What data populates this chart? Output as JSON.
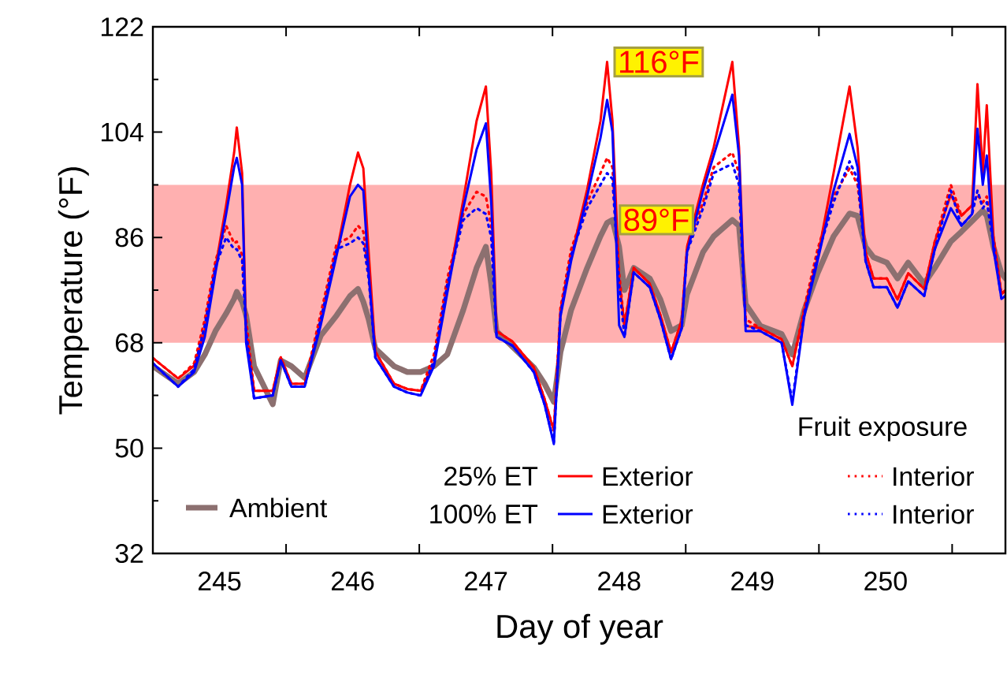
{
  "chart_data": {
    "type": "line",
    "xlabel": "Day of year",
    "ylabel": "Temperature (°F)",
    "legend_title": "Fruit exposure",
    "legend": "bottom",
    "xlim": [
      244.5,
      250.9
    ],
    "ylim": [
      32,
      122
    ],
    "xticks": [
      {
        "value": 244.5,
        "label": null
      },
      245,
      {
        "value": 245.5,
        "label": null
      },
      246,
      {
        "value": 246.5,
        "label": null
      },
      247,
      {
        "value": 247.5,
        "label": null
      },
      248,
      {
        "value": 248.5,
        "label": null
      },
      249,
      {
        "value": 249.5,
        "label": null
      },
      250,
      {
        "value": 250.5,
        "label": null
      }
    ],
    "yticks": [
      32,
      {
        "value": 41,
        "label": null
      },
      50,
      {
        "value": 59,
        "label": null
      },
      68,
      {
        "value": 77,
        "label": null
      },
      86,
      {
        "value": 95,
        "label": null
      },
      104,
      {
        "value": 113,
        "label": null
      },
      122
    ],
    "bands": [
      {
        "axis": "y",
        "from": 68,
        "to": 95,
        "color": "#ffb0b0"
      }
    ],
    "annotations": [
      {
        "text": "116°F",
        "x": 247.91,
        "y": 116
      },
      {
        "text": "89°F",
        "x": 247.95,
        "y": 89
      },
      "25% ET",
      "100% ET"
    ],
    "x": [
      244.5,
      244.69,
      244.81,
      244.89,
      244.97,
      245.05,
      245.11,
      245.13,
      245.17,
      245.2,
      245.26,
      245.4,
      245.46,
      245.54,
      245.64,
      245.76,
      245.88,
      245.98,
      246.04,
      246.08,
      246.12,
      246.17,
      246.31,
      246.41,
      246.51,
      246.61,
      246.71,
      246.83,
      246.93,
      247.0,
      247.04,
      247.08,
      247.2,
      247.36,
      247.44,
      247.51,
      247.56,
      247.64,
      247.76,
      247.86,
      247.91,
      247.95,
      248.0,
      248.04,
      248.11,
      248.23,
      248.31,
      248.39,
      248.47,
      248.51,
      248.63,
      248.71,
      248.85,
      248.9,
      248.95,
      249.06,
      249.22,
      249.3,
      249.39,
      249.49,
      249.61,
      249.73,
      249.79,
      249.85,
      249.91,
      250.01,
      250.09,
      250.17,
      250.29,
      250.37,
      250.49,
      250.57,
      250.65,
      250.69,
      250.73,
      250.76,
      250.81,
      250.87,
      250.9
    ],
    "series": [
      {
        "name": "Ambient",
        "color": "#8c7070",
        "line_style": "solid",
        "values": [
          64,
          61,
          63,
          66,
          70,
          73,
          75.5,
          76.7,
          75,
          72.7,
          64,
          57.5,
          65,
          64,
          62,
          69.2,
          72.7,
          76,
          77.2,
          75,
          72,
          67,
          64,
          63,
          63,
          64,
          66,
          73.6,
          80.8,
          84.4,
          78,
          70,
          67.3,
          63.8,
          61,
          57.9,
          66.4,
          73.6,
          80.8,
          86.2,
          88.5,
          89,
          84.4,
          77,
          80.8,
          79,
          75.4,
          70,
          71,
          76.3,
          83.5,
          86.2,
          89,
          88,
          74.6,
          70.9,
          69.5,
          66,
          73.6,
          79.9,
          86.2,
          90.1,
          89.7,
          84.4,
          82.6,
          81.7,
          79,
          81.7,
          78.1,
          80.8,
          85.3,
          87,
          88.8,
          89.7,
          90.6,
          89.7,
          84.4,
          79.9,
          79
        ]
      },
      {
        "name": "Exterior",
        "color": "#ff0000",
        "line_style": "solid",
        "values": [
          65.4,
          61.9,
          64.1,
          70,
          80.8,
          91.5,
          100.5,
          104.8,
          97,
          70,
          59.8,
          59.8,
          65.5,
          61,
          61,
          71.8,
          83.5,
          95,
          100.5,
          97.8,
          83.5,
          66.5,
          61,
          60.1,
          59.8,
          64.6,
          77.2,
          92.4,
          105.9,
          111.8,
          97,
          70,
          68.2,
          63.8,
          58.4,
          53,
          73.6,
          82.6,
          94.2,
          105.9,
          116,
          105.9,
          79,
          70.9,
          80.8,
          78.1,
          72.7,
          66.4,
          71.8,
          84.4,
          95.1,
          101.4,
          116,
          101.4,
          70.9,
          70.5,
          68.6,
          64,
          73.6,
          82.6,
          97,
          111.8,
          101.4,
          83.5,
          79,
          79,
          75.4,
          79.9,
          77.2,
          85.3,
          93.3,
          89.7,
          91.5,
          112.2,
          97,
          108.6,
          86.2,
          76.3,
          77
        ]
      },
      {
        "name": "Interior",
        "color": "#ff0000",
        "line_style": "dotted",
        "values": [
          65.4,
          61.9,
          64.5,
          72,
          82,
          88,
          85,
          85.3,
          83,
          72,
          59.8,
          59.8,
          65.5,
          61,
          61,
          73,
          85,
          86,
          88,
          87,
          80,
          66.5,
          61,
          60.1,
          59.8,
          66,
          79,
          90,
          93.8,
          93,
          88,
          70,
          68.2,
          63.8,
          58.4,
          53,
          74,
          84,
          92,
          97,
          99.6,
          98,
          80,
          71,
          80.8,
          78.1,
          72.7,
          66.4,
          71.8,
          84.4,
          92,
          98,
          100.5,
          97,
          72,
          70.5,
          68.6,
          64,
          74,
          84,
          93,
          97.8,
          95,
          83.5,
          79,
          79,
          75.4,
          79.9,
          77.2,
          85.3,
          95,
          89.7,
          91.5,
          93.3,
          92,
          93,
          86,
          76.3,
          77
        ]
      },
      {
        "name": "Exterior",
        "color": "#0000ff",
        "line_style": "solid",
        "values": [
          64.5,
          60.5,
          63,
          69,
          80,
          90,
          98,
          99.6,
          95,
          68,
          58.5,
          59,
          65,
          60.5,
          60.5,
          71,
          83,
          93,
          95,
          94,
          80,
          65.5,
          60.5,
          59.5,
          59,
          64,
          76.5,
          91,
          101,
          105.5,
          92,
          69,
          67.5,
          63,
          57.5,
          50.7,
          72.5,
          82,
          93,
          103,
          109.5,
          104,
          71,
          69,
          80,
          77.5,
          72,
          65.2,
          70.5,
          83.5,
          94,
          100,
          110.4,
          100,
          70,
          70,
          68,
          57.4,
          72.5,
          82,
          94,
          103.7,
          98,
          82,
          77.5,
          77.5,
          74,
          78.5,
          76,
          84,
          91,
          88,
          90,
          104.6,
          95,
          100,
          84,
          75.5,
          76
        ]
      },
      {
        "name": "Interior",
        "color": "#0000ff",
        "line_style": "dotted",
        "values": [
          64.5,
          60.5,
          63.5,
          71,
          81,
          86,
          84,
          84,
          82,
          70,
          58.5,
          59,
          65,
          60.5,
          60.5,
          72,
          84,
          85,
          86,
          85,
          79,
          65.5,
          60.5,
          59.5,
          59,
          65,
          78,
          89,
          91,
          90,
          86,
          69,
          67.5,
          63,
          57.5,
          51,
          73,
          83,
          91,
          95,
          97,
          96,
          78,
          69,
          80,
          77.5,
          72,
          65.2,
          70.5,
          83.5,
          91,
          97,
          98.6,
          95,
          71,
          70,
          68,
          58,
          73,
          83,
          92,
          99,
          96,
          82,
          77.5,
          77.5,
          74,
          78.5,
          76,
          84,
          94,
          88,
          90,
          94,
          91,
          92,
          85,
          75.5,
          76
        ]
      }
    ]
  }
}
